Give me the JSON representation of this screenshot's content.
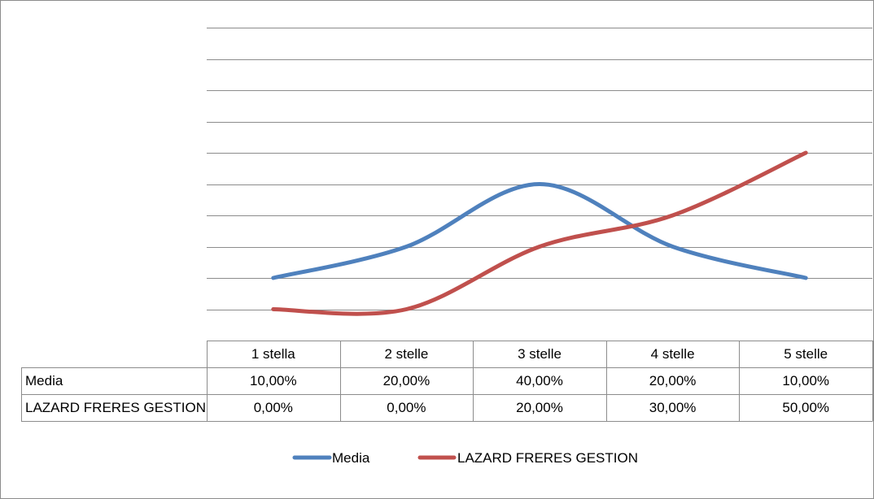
{
  "chart_data": {
    "type": "line",
    "title": "",
    "xlabel": "",
    "ylabel": "",
    "categories": [
      "1 stella",
      "2 stelle",
      "3 stelle",
      "4 stelle",
      "5 stelle"
    ],
    "ylim": [
      -0.1,
      0.9
    ],
    "grid": true,
    "legend": "bottom",
    "series": [
      {
        "name": "Media",
        "color": "#4f81bd",
        "values": [
          0.1,
          0.2,
          0.4,
          0.2,
          0.1
        ],
        "labels": [
          "10,00%",
          "20,00%",
          "40,00%",
          "20,00%",
          "10,00%"
        ]
      },
      {
        "name": "LAZARD FRERES GESTION",
        "color": "#c0504d",
        "values": [
          0.0,
          0.0,
          0.2,
          0.3,
          0.5
        ],
        "labels": [
          "0,00%",
          "0,00%",
          "20,00%",
          "30,00%",
          "50,00%"
        ]
      }
    ]
  }
}
